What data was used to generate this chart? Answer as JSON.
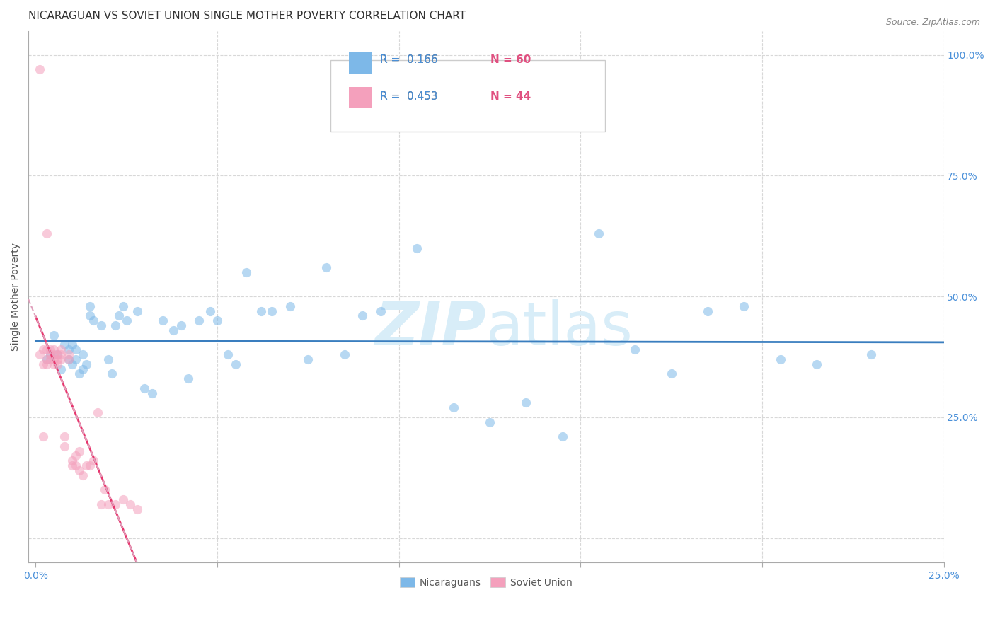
{
  "title": "NICARAGUAN VS SOVIET UNION SINGLE MOTHER POVERTY CORRELATION CHART",
  "source": "Source: ZipAtlas.com",
  "ylabel": "Single Mother Poverty",
  "xlim": [
    -0.002,
    0.25
  ],
  "ylim": [
    -0.05,
    1.05
  ],
  "xticks": [
    0.0,
    0.05,
    0.1,
    0.15,
    0.2,
    0.25
  ],
  "xticklabels": [
    "0.0%",
    "",
    "",
    "",
    "",
    "25.0%"
  ],
  "yticks_right": [
    0.25,
    0.5,
    0.75,
    1.0
  ],
  "yticklabels_right": [
    "25.0%",
    "50.0%",
    "75.0%",
    "100.0%"
  ],
  "blue_color": "#7db8e8",
  "pink_color": "#f4a0bc",
  "blue_line_color": "#3a7ebf",
  "pink_line_color": "#e8356d",
  "pink_dashed_color": "#e0a0bc",
  "watermark_color": "#d8edf8",
  "blue_r": 0.166,
  "blue_n": 60,
  "pink_r": 0.453,
  "pink_n": 44,
  "blue_points_x": [
    0.003,
    0.004,
    0.005,
    0.006,
    0.007,
    0.008,
    0.009,
    0.009,
    0.01,
    0.01,
    0.011,
    0.011,
    0.012,
    0.013,
    0.013,
    0.014,
    0.015,
    0.015,
    0.016,
    0.018,
    0.02,
    0.021,
    0.022,
    0.023,
    0.024,
    0.025,
    0.028,
    0.03,
    0.032,
    0.035,
    0.038,
    0.04,
    0.042,
    0.045,
    0.048,
    0.05,
    0.053,
    0.055,
    0.058,
    0.062,
    0.065,
    0.07,
    0.075,
    0.08,
    0.085,
    0.09,
    0.095,
    0.105,
    0.115,
    0.125,
    0.135,
    0.145,
    0.155,
    0.165,
    0.175,
    0.185,
    0.195,
    0.205,
    0.215,
    0.23
  ],
  "blue_points_y": [
    0.37,
    0.38,
    0.42,
    0.38,
    0.35,
    0.4,
    0.37,
    0.39,
    0.36,
    0.4,
    0.37,
    0.39,
    0.34,
    0.35,
    0.38,
    0.36,
    0.48,
    0.46,
    0.45,
    0.44,
    0.37,
    0.34,
    0.44,
    0.46,
    0.48,
    0.45,
    0.47,
    0.31,
    0.3,
    0.45,
    0.43,
    0.44,
    0.33,
    0.45,
    0.47,
    0.45,
    0.38,
    0.36,
    0.55,
    0.47,
    0.47,
    0.48,
    0.37,
    0.56,
    0.38,
    0.46,
    0.47,
    0.6,
    0.27,
    0.24,
    0.28,
    0.21,
    0.63,
    0.39,
    0.34,
    0.47,
    0.48,
    0.37,
    0.36,
    0.38
  ],
  "pink_points_x": [
    0.001,
    0.001,
    0.002,
    0.002,
    0.002,
    0.003,
    0.003,
    0.003,
    0.003,
    0.004,
    0.004,
    0.004,
    0.005,
    0.005,
    0.005,
    0.005,
    0.006,
    0.006,
    0.006,
    0.007,
    0.007,
    0.007,
    0.008,
    0.008,
    0.009,
    0.009,
    0.01,
    0.01,
    0.011,
    0.011,
    0.012,
    0.012,
    0.013,
    0.014,
    0.015,
    0.016,
    0.017,
    0.018,
    0.019,
    0.02,
    0.022,
    0.024,
    0.026,
    0.028
  ],
  "pink_points_y": [
    0.97,
    0.38,
    0.36,
    0.21,
    0.39,
    0.37,
    0.36,
    0.39,
    0.63,
    0.37,
    0.38,
    0.39,
    0.36,
    0.37,
    0.39,
    0.38,
    0.36,
    0.37,
    0.38,
    0.37,
    0.39,
    0.38,
    0.21,
    0.19,
    0.37,
    0.38,
    0.16,
    0.15,
    0.15,
    0.17,
    0.18,
    0.14,
    0.13,
    0.15,
    0.15,
    0.16,
    0.26,
    0.07,
    0.1,
    0.07,
    0.07,
    0.08,
    0.07,
    0.06
  ],
  "grid_color": "#d8d8d8",
  "title_fontsize": 11,
  "label_fontsize": 10,
  "tick_fontsize": 10,
  "tick_color": "#4a90d9",
  "legend_color_r1": "#4a90d9",
  "legend_color_n1": "#e05080",
  "legend_color_r2": "#4a90d9",
  "legend_color_n2": "#e05080"
}
